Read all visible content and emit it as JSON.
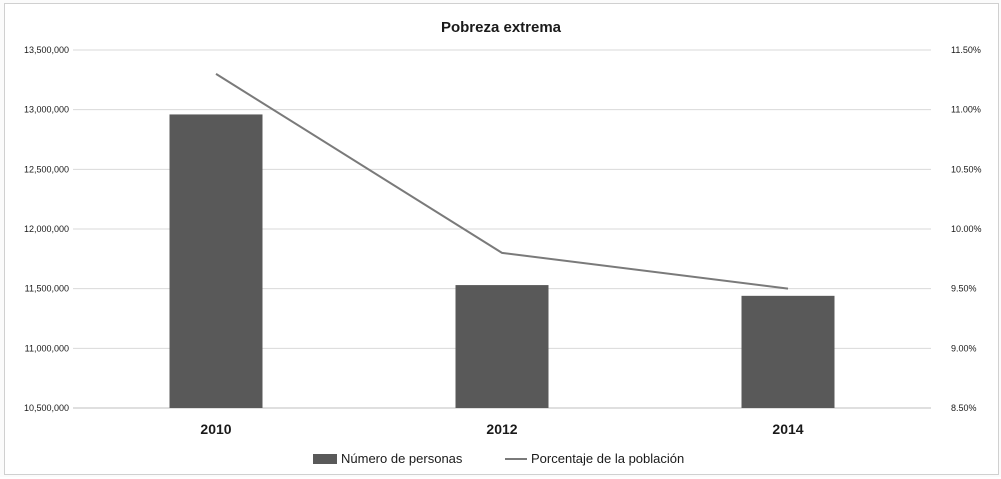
{
  "colors": {
    "bar": "#595959",
    "line": "#7a7a7a",
    "grid": "#d9d9d9",
    "axis": "#bfbfbf",
    "text": "#1a1a1a"
  },
  "chart_data": {
    "type": "bar",
    "title": "Pobreza extrema",
    "xlabel": "",
    "ylabel": "",
    "categories": [
      "2010",
      "2012",
      "2014"
    ],
    "series": [
      {
        "name": "Número de personas",
        "type": "bar",
        "axis": "left",
        "values": [
          12960000,
          11530000,
          11440000
        ]
      },
      {
        "name": "Porcentaje de la población",
        "type": "line",
        "axis": "right",
        "values": [
          11.3,
          9.8,
          9.5
        ]
      }
    ],
    "ylim": [
      10500000,
      13500000
    ],
    "y2lim": [
      8.5,
      11.5
    ],
    "y_ticks": [
      "10,500,000",
      "11,000,000",
      "11,500,000",
      "12,000,000",
      "12,500,000",
      "13,000,000",
      "13,500,000"
    ],
    "y2_ticks": [
      "8.50%",
      "9.00%",
      "9.50%",
      "10.00%",
      "10.50%",
      "11.00%",
      "11.50%"
    ],
    "grid": true,
    "legend_position": "bottom"
  }
}
